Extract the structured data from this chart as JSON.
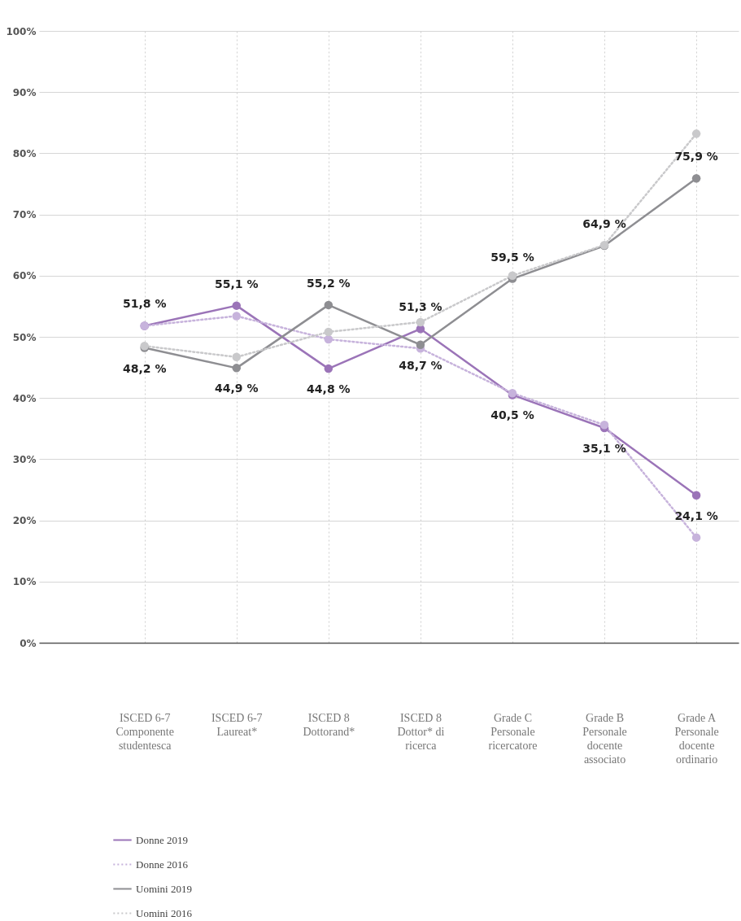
{
  "chart_data": {
    "type": "line",
    "categories": [
      "ISCED 6-7\nComponente\nstudentesca",
      "ISCED 6-7\nLaureat*",
      "ISCED 8\nDottorand*",
      "ISCED 8\nDottor* di\nricerca",
      "Grade C\nPersonale\nricercatore",
      "Grade B\nPersonale\ndocente\nassociato",
      "Grade A\nPersonale\ndocente\nordinario"
    ],
    "series": [
      {
        "name": "Donne 2019",
        "color": "#9b74b8",
        "line_style": "solid",
        "values": [
          51.8,
          55.1,
          44.8,
          51.3,
          40.5,
          35.1,
          24.1
        ],
        "value_labels": [
          "51,8 %",
          "55,1 %",
          "44,8 %",
          "51,3 %",
          "40,5 %",
          "35,1 %",
          "24,1 %"
        ]
      },
      {
        "name": "Donne 2016",
        "color": "#c7b3dc",
        "line_style": "dotted",
        "values": [
          51.8,
          53.4,
          49.6,
          48.1,
          40.8,
          35.6,
          17.2
        ]
      },
      {
        "name": "Uomini 2019",
        "color": "#8e8e92",
        "line_style": "solid",
        "values": [
          48.2,
          44.9,
          55.2,
          48.7,
          59.5,
          64.9,
          75.9
        ],
        "value_labels": [
          "48,2 %",
          "44,9 %",
          "55,2 %",
          "48,7 %",
          "59,5 %",
          "64,9 %",
          "75,9 %"
        ]
      },
      {
        "name": "Uomini 2016",
        "color": "#c9c9cb",
        "line_style": "dotted",
        "values": [
          48.5,
          46.7,
          50.8,
          52.4,
          60.0,
          65.0,
          83.2
        ]
      }
    ],
    "ylim": [
      0,
      100
    ],
    "yticks": [
      {
        "value": 0,
        "label": "0%"
      },
      {
        "value": 10,
        "label": "10%"
      },
      {
        "value": 20,
        "label": "20%"
      },
      {
        "value": 30,
        "label": "30%"
      },
      {
        "value": 40,
        "label": "40%"
      },
      {
        "value": 50,
        "label": "50%"
      },
      {
        "value": 60,
        "label": "60%"
      },
      {
        "value": 70,
        "label": "70%"
      },
      {
        "value": 80,
        "label": "80%"
      },
      {
        "value": 90,
        "label": "90%"
      },
      {
        "value": 100,
        "label": "100%"
      }
    ],
    "grid": true,
    "marker": "circle",
    "legend": "bottom left"
  }
}
